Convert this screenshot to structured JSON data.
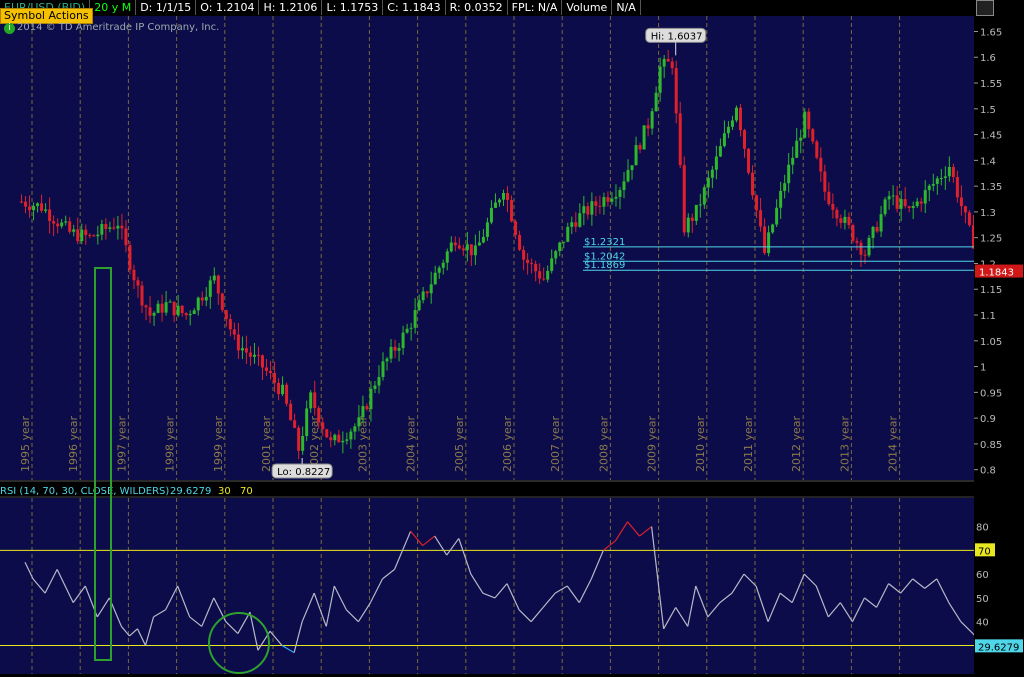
{
  "header": {
    "symbol": "EUR/USD (BID)",
    "period": "20 y M",
    "fields": [
      "D: 1/1/15",
      "O: 1.2104",
      "H: 1.2106",
      "L: 1.1753",
      "C: 1.1843",
      "R: 0.0352",
      "FPL: N/A",
      "Volume",
      "N/A"
    ],
    "symbol_actions": "Symbol Actions",
    "copyright": "2014 © TD Ameritrade IP Company, Inc.",
    "info_glyph": "i"
  },
  "chart_data": [
    {
      "type": "candlestick",
      "title": "EUR/USD (BID)",
      "ylim": [
        0.78,
        1.68
      ],
      "y_ticks": [
        "1.65",
        "1.6",
        "1.55",
        "1.5",
        "1.45",
        "1.4",
        "1.35",
        "1.3",
        "1.25",
        "1.2",
        "1.15",
        "1.1",
        "1.05",
        "1",
        "0.95",
        "0.9",
        "0.85",
        "0.8"
      ],
      "x_labels": [
        "1995 year",
        "1996 year",
        "1997 year",
        "1998 year",
        "1999 year",
        "2001 year",
        "2002 year",
        "2003 year",
        "2004 year",
        "2005 year",
        "2006 year",
        "2007 year",
        "2008 year",
        "2009 year",
        "2010 year",
        "2011 year",
        "2012 year",
        "2013 year",
        "2014 year"
      ],
      "grid": "vertical dashed year separators",
      "colors": {
        "up": "#2db82d",
        "down": "#e0202a",
        "background": "#0c0c4a"
      },
      "monthly_close_path": {
        "dates": [
          "1995-01",
          "1995-06",
          "1996-01",
          "1996-06",
          "1997-01",
          "1997-06",
          "1997-09",
          "1998-01",
          "1998-06",
          "1999-01",
          "1999-06",
          "2000-01",
          "2000-06",
          "2000-10",
          "2001-01",
          "2001-06",
          "2002-01",
          "2002-06",
          "2003-01",
          "2003-06",
          "2004-01",
          "2004-06",
          "2005-01",
          "2005-06",
          "2005-11",
          "2006-06",
          "2007-01",
          "2007-06",
          "2008-01",
          "2008-04",
          "2008-07",
          "2008-10",
          "2009-01",
          "2009-06",
          "2009-11",
          "2010-06",
          "2010-11",
          "2011-04",
          "2011-09",
          "2012-01",
          "2012-07",
          "2013-01",
          "2013-06",
          "2014-04",
          "2014-09",
          "2014-12"
        ],
        "values": [
          1.32,
          1.31,
          1.26,
          1.25,
          1.28,
          1.15,
          1.1,
          1.12,
          1.1,
          1.17,
          1.05,
          1.0,
          0.95,
          0.84,
          0.94,
          0.85,
          0.89,
          0.99,
          1.07,
          1.15,
          1.25,
          1.22,
          1.35,
          1.21,
          1.17,
          1.28,
          1.32,
          1.35,
          1.47,
          1.58,
          1.59,
          1.27,
          1.3,
          1.4,
          1.51,
          1.22,
          1.36,
          1.48,
          1.34,
          1.29,
          1.22,
          1.33,
          1.3,
          1.39,
          1.26,
          1.2104
        ]
      },
      "annotations": [
        {
          "text": "Hi: 1.6037",
          "date": "2008-07",
          "value": 1.6037
        },
        {
          "text": "Lo: 0.8227",
          "date": "2000-10",
          "value": 0.8227
        }
      ],
      "levels": [
        {
          "label": "$1.2321",
          "value": 1.2321
        },
        {
          "label": "$1.2042",
          "value": 1.2042
        },
        {
          "label": "$1.1869",
          "value": 1.1869
        }
      ],
      "last_price": {
        "label": "1.1843",
        "value": 1.1843
      }
    },
    {
      "type": "line",
      "title": "RSI (14, 70, 30, CLOSE, WILDERS)",
      "legend_values": [
        "29.6279",
        "30",
        "70"
      ],
      "ylim": [
        18,
        92
      ],
      "y_ticks": [
        "80",
        "70",
        "60",
        "50",
        "40"
      ],
      "overbought": 70,
      "oversold": 30,
      "series": [
        {
          "dates": [
            "1995-01",
            "1995-03",
            "1995-06",
            "1995-09",
            "1996-01",
            "1996-04",
            "1996-07",
            "1996-10",
            "1997-01",
            "1997-03",
            "1997-05",
            "1997-07",
            "1997-09",
            "1997-12",
            "1998-03",
            "1998-06",
            "1998-09",
            "1998-12",
            "1999-03",
            "1999-06",
            "1999-09",
            "1999-11",
            "2000-02",
            "2000-05",
            "2000-08",
            "2000-10",
            "2001-01",
            "2001-04",
            "2001-06",
            "2001-09",
            "2001-12",
            "2002-03",
            "2002-06",
            "2002-09",
            "2003-01",
            "2003-04",
            "2003-07",
            "2003-10",
            "2004-01",
            "2004-04",
            "2004-07",
            "2004-10",
            "2005-01",
            "2005-04",
            "2005-07",
            "2005-10",
            "2006-01",
            "2006-04",
            "2006-07",
            "2006-10",
            "2007-01",
            "2007-04",
            "2007-07",
            "2007-10",
            "2008-01",
            "2008-04",
            "2008-07",
            "2008-10",
            "2008-12",
            "2009-03",
            "2009-06",
            "2009-09",
            "2009-12",
            "2010-03",
            "2010-06",
            "2010-09",
            "2010-12",
            "2011-03",
            "2011-06",
            "2011-09",
            "2011-12",
            "2012-03",
            "2012-06",
            "2012-09",
            "2012-12",
            "2013-03",
            "2013-06",
            "2013-09",
            "2013-12",
            "2014-03",
            "2014-06",
            "2014-09",
            "2014-12"
          ],
          "values": [
            65,
            58,
            52,
            62,
            48,
            55,
            42,
            50,
            38,
            34,
            37,
            30,
            42,
            45,
            55,
            42,
            38,
            50,
            40,
            35,
            44,
            28,
            36,
            30,
            27,
            40,
            52,
            38,
            55,
            45,
            40,
            48,
            58,
            62,
            78,
            72,
            76,
            68,
            75,
            60,
            52,
            50,
            56,
            45,
            40,
            46,
            52,
            55,
            48,
            58,
            70,
            74,
            82,
            76,
            80,
            37,
            46,
            38,
            55,
            42,
            48,
            52,
            60,
            55,
            40,
            52,
            48,
            60,
            55,
            42,
            48,
            40,
            50,
            46,
            56,
            52,
            58,
            54,
            58,
            48,
            40,
            35,
            29.6279
          ]
        }
      ]
    }
  ]
}
